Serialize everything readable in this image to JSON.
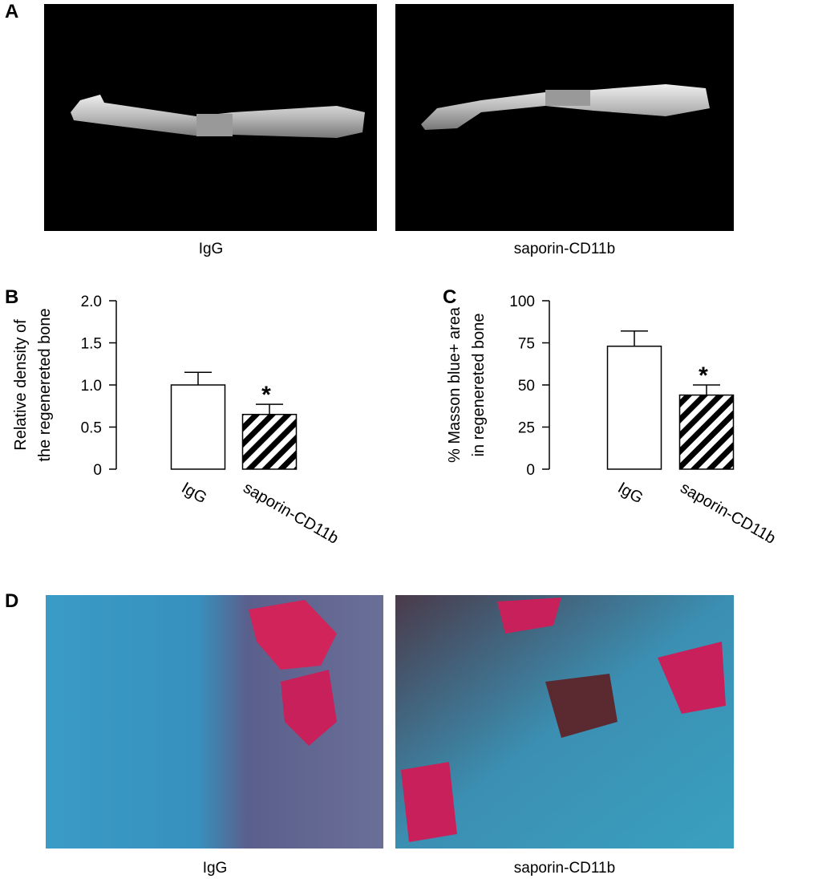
{
  "figure": {
    "panel_labels": [
      "A",
      "B",
      "C",
      "D"
    ],
    "captions_a": [
      "IgG",
      "saporin-CD11b"
    ],
    "captions_d": [
      "IgG",
      "saporin-CD11b"
    ]
  },
  "chart_data": [
    {
      "type": "bar",
      "ylabel": [
        "Relative density of",
        "the regenereted bone"
      ],
      "categories": [
        "IgG",
        "saporin-CD11b"
      ],
      "values": [
        1.0,
        0.65
      ],
      "errors": [
        0.15,
        0.12
      ],
      "bar_styles": [
        "open",
        "hatched"
      ],
      "annotation": "*",
      "ylim": [
        0,
        2
      ],
      "yticks": [
        0,
        0.5,
        {
          "value": 1,
          "label": "1.0"
        },
        1.5,
        {
          "value": 2,
          "label": "2.0"
        }
      ]
    },
    {
      "type": "bar",
      "ylabel": [
        "% Masson blue+ area",
        "in regenereted bone"
      ],
      "categories": [
        "IgG",
        "saporin-CD11b"
      ],
      "values": [
        73,
        44
      ],
      "errors": [
        9,
        6
      ],
      "bar_styles": [
        "open",
        "hatched"
      ],
      "annotation": "*",
      "ylim": [
        0,
        100
      ],
      "yticks": [
        0,
        25,
        50,
        75,
        100
      ]
    }
  ]
}
